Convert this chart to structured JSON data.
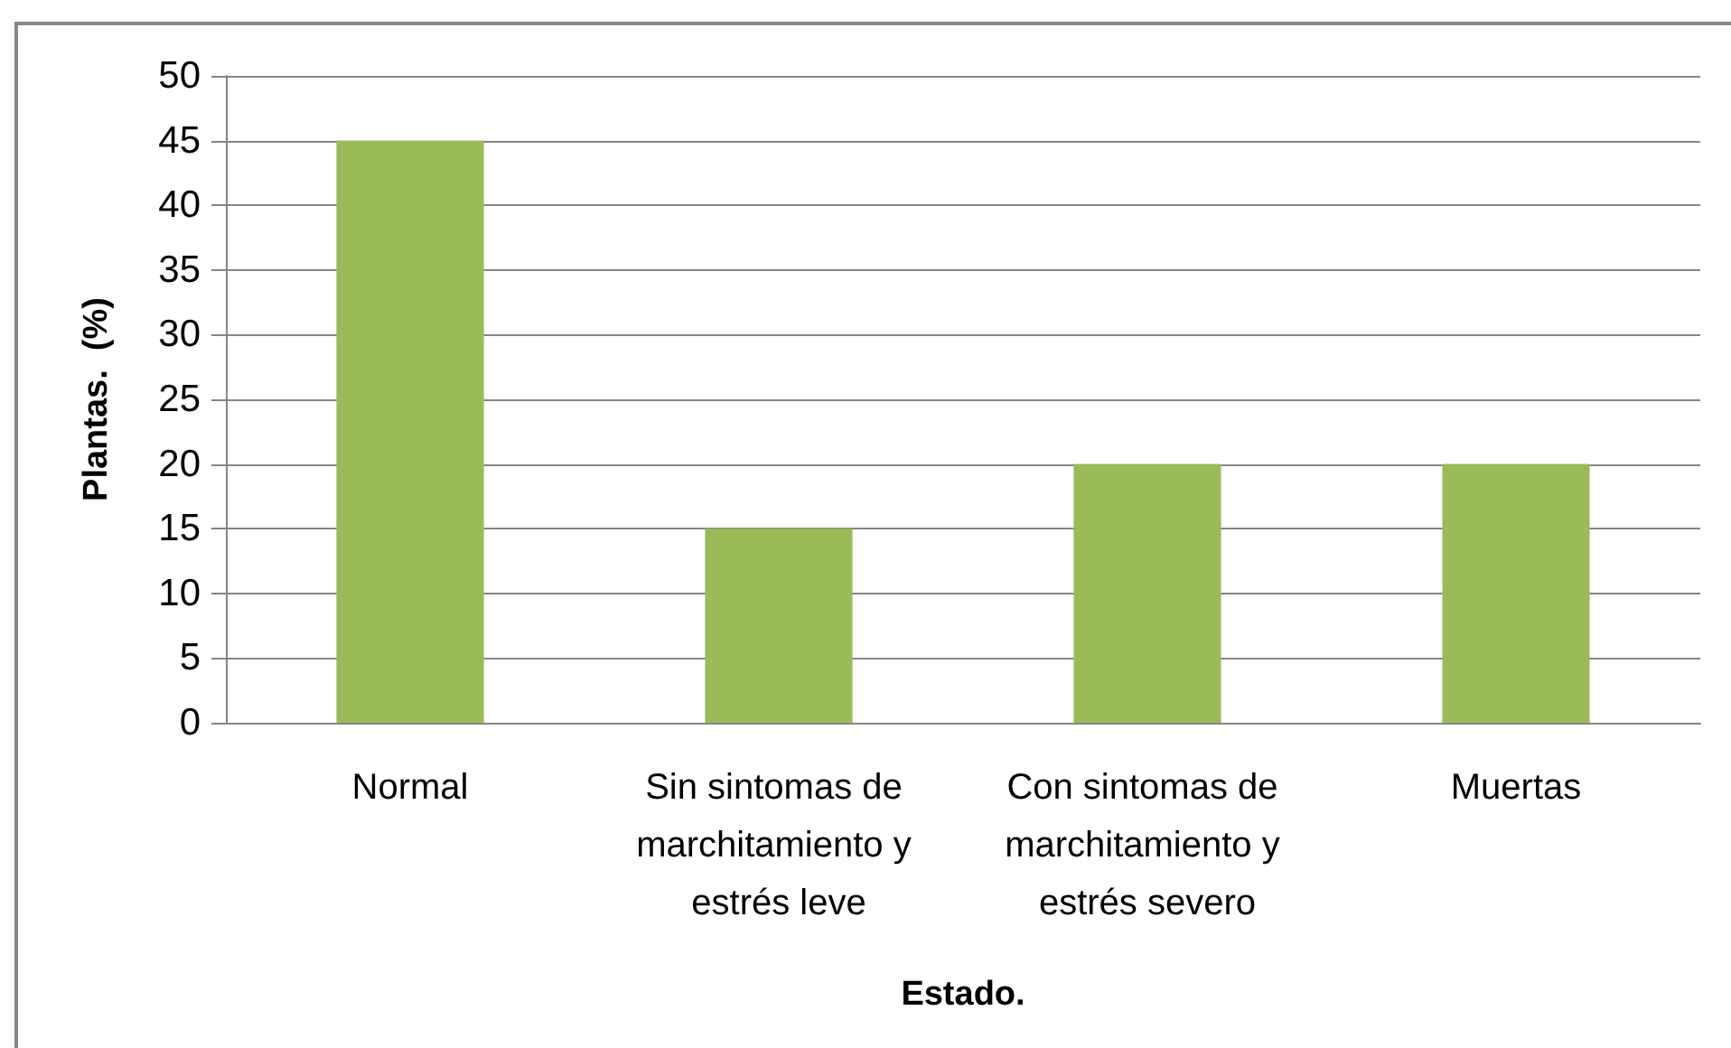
{
  "chart_data": {
    "type": "bar",
    "xlabel": "Estado.",
    "ylabel": "Plantas.  (%)",
    "categories": [
      "Normal",
      "Sin sintomas de marchitamiento y estrés leve",
      "Con sintomas de marchitamiento y estrés severo",
      "Muertas"
    ],
    "values": [
      45,
      15,
      20,
      20
    ],
    "color": "#9bbb59",
    "ylim": [
      0,
      50
    ],
    "yticks": [
      0,
      5,
      10,
      15,
      20,
      25,
      30,
      35,
      40,
      45,
      50
    ],
    "grid": "y"
  }
}
